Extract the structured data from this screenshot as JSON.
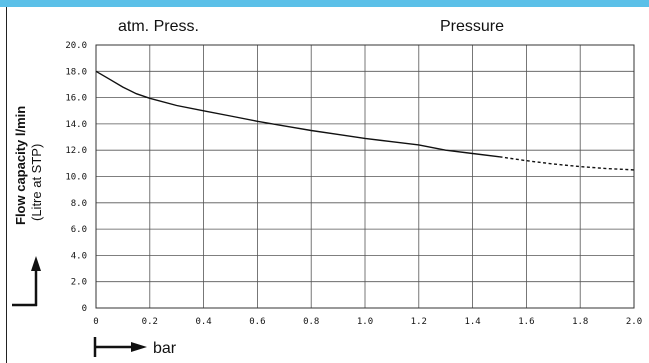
{
  "chart_data": {
    "type": "line",
    "header_left": "atm. Press.",
    "header_right": "Pressure",
    "ylabel": "Flow capacity l/min",
    "ylabel_sub": "(Litre at STP)",
    "xlabel": "bar",
    "xlim": [
      0,
      2.0
    ],
    "ylim": [
      0,
      20.0
    ],
    "x_ticks": [
      "0",
      "0.2",
      "0.4",
      "0.6",
      "0.8",
      "1.0",
      "1.2",
      "1.4",
      "1.6",
      "1.8",
      "2.0"
    ],
    "y_ticks": [
      "0",
      "2.0",
      "4.0",
      "6.0",
      "8.0",
      "10.0",
      "12.0",
      "14.0",
      "16.0",
      "18.0",
      "20.0"
    ],
    "grid": true,
    "series": [
      {
        "style": "solid",
        "x": [
          0,
          0.05,
          0.1,
          0.15,
          0.2,
          0.3,
          0.4,
          0.5,
          0.6,
          0.7,
          0.8,
          0.9,
          1.0,
          1.1,
          1.2,
          1.3,
          1.4,
          1.5
        ],
        "y": [
          18.0,
          17.4,
          16.8,
          16.3,
          15.95,
          15.4,
          15.0,
          14.6,
          14.2,
          13.85,
          13.5,
          13.2,
          12.9,
          12.65,
          12.4,
          12.0,
          11.75,
          11.5
        ]
      },
      {
        "style": "dashed",
        "x": [
          1.5,
          1.6,
          1.7,
          1.8,
          1.9,
          2.0
        ],
        "y": [
          11.5,
          11.2,
          10.95,
          10.75,
          10.6,
          10.5
        ]
      }
    ]
  },
  "colors": {
    "accent_bar": "#5bc0e8",
    "grid": "#555555",
    "line": "#111111"
  }
}
